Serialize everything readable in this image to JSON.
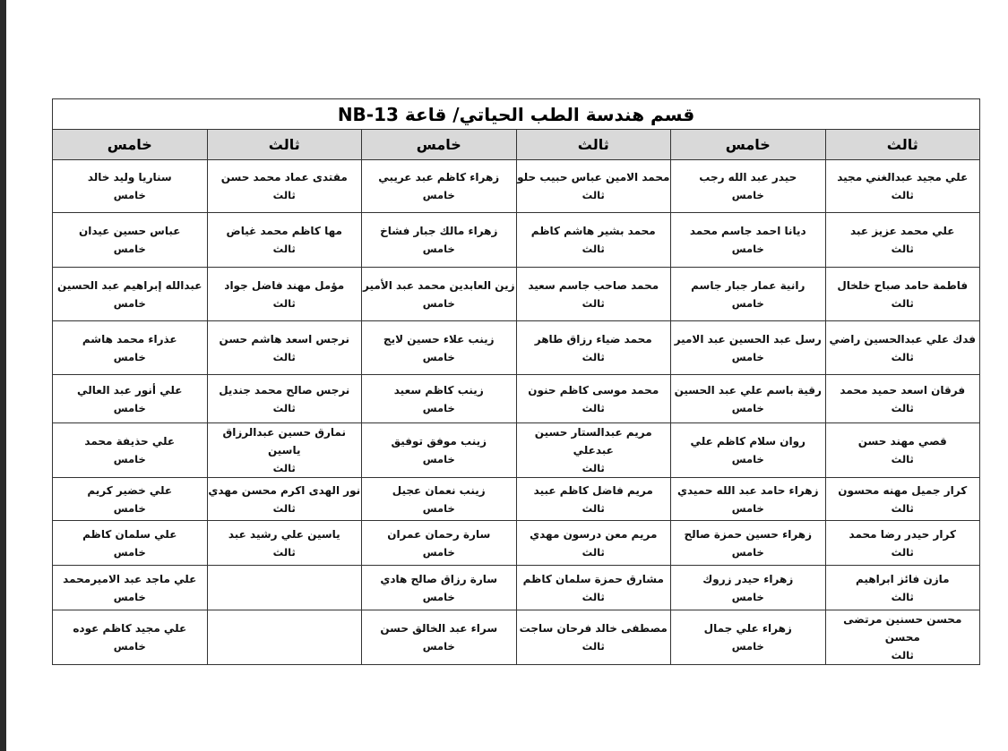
{
  "title": "قسم هندسة الطب الحياتي/ قاعة NB-13",
  "headers": [
    "ثالث",
    "خامس",
    "ثالث",
    "خامس",
    "ثالث",
    "خامس"
  ],
  "rows": [
    [
      [
        "علي مجيد عبدالغني مجيد",
        "ثالث"
      ],
      [
        "حيدر عبد الله رجب",
        "خامس"
      ],
      [
        "محمد الامين عباس حبيب حلو",
        "ثالث"
      ],
      [
        "زهراء كاظم عبد عريبي",
        "خامس"
      ],
      [
        "مقتدى عماد محمد حسن",
        "ثالث"
      ],
      [
        "سناريا وليد خالد",
        "خامس"
      ]
    ],
    [
      [
        "علي محمد عزيز عبد",
        "ثالث"
      ],
      [
        "ديانا احمد جاسم محمد",
        "خامس"
      ],
      [
        "محمد بشير هاشم كاظم",
        "ثالث"
      ],
      [
        "زهراء مالك جبار فشاخ",
        "خامس"
      ],
      [
        "مها كاظم محمد غياض",
        "ثالث"
      ],
      [
        "عباس حسين عيدان",
        "خامس"
      ]
    ],
    [
      [
        "فاطمة حامد صباح خلخال",
        "ثالث"
      ],
      [
        "رانية عمار جبار جاسم",
        "خامس"
      ],
      [
        "محمد صاحب جاسم سعيد",
        "ثالث"
      ],
      [
        "زين العابدين محمد عبد الأمير",
        "خامس"
      ],
      [
        "مؤمل مهند فاضل جواد",
        "ثالث"
      ],
      [
        "عبدالله إبراهيم عبد الحسين",
        "خامس"
      ]
    ],
    [
      [
        "فدك علي عبدالحسين راضي",
        "ثالث"
      ],
      [
        "رسل عبد الحسين عبد الامير",
        "خامس"
      ],
      [
        "محمد ضياء رزاق طاهر",
        "ثالث"
      ],
      [
        "زينب علاء حسين لايج",
        "خامس"
      ],
      [
        "نرجس اسعد هاشم حسن",
        "ثالث"
      ],
      [
        "عذراء محمد هاشم",
        "خامس"
      ]
    ],
    [
      [
        "فرقان اسعد حميد محمد",
        "ثالث"
      ],
      [
        "رقية باسم علي عبد الحسين",
        "خامس"
      ],
      [
        "محمد موسى كاظم حنون",
        "ثالث"
      ],
      [
        "زينب كاظم سعيد",
        "خامس"
      ],
      [
        "نرجس صالح محمد جنديل",
        "ثالث"
      ],
      [
        "علي أنور عبد العالي",
        "خامس"
      ]
    ],
    [
      [
        "قصي مهند حسن",
        "ثالث"
      ],
      [
        "روان سلام كاظم علي",
        "خامس"
      ],
      [
        "مريم عبدالستار حسين عبدعلي",
        "ثالث"
      ],
      [
        "زينب موفق توفيق",
        "خامس"
      ],
      [
        "نمارق حسين عبدالرزاق ياسين",
        "ثالث"
      ],
      [
        "علي حذيفة محمد",
        "خامس"
      ]
    ],
    [
      [
        "كرار جميل مهنه محسون",
        "ثالث"
      ],
      [
        "زهراء حامد عبد الله حميدي",
        "خامس"
      ],
      [
        "مريم فاضل كاظم عبيد",
        "ثالث"
      ],
      [
        "زينب نعمان عجيل",
        "خامس"
      ],
      [
        "نور الهدى اكرم محسن مهدي",
        "ثالث"
      ],
      [
        "علي خضير كريم",
        "خامس"
      ]
    ],
    [
      [
        "كرار حيدر رضا محمد",
        "ثالث"
      ],
      [
        "زهراء حسين حمزة صالح",
        "خامس"
      ],
      [
        "مريم معن درسون مهدي",
        "ثالث"
      ],
      [
        "سارة رحمان عمران",
        "خامس"
      ],
      [
        "ياسين علي رشيد عبد",
        "ثالث"
      ],
      [
        "علي سلمان كاظم",
        "خامس"
      ]
    ],
    [
      [
        "مازن فائز ابراهيم",
        "ثالث"
      ],
      [
        "زهراء حيدر زروك",
        "خامس"
      ],
      [
        "مشارق حمزة سلمان كاظم",
        "ثالث"
      ],
      [
        "سارة رزاق صالح هادي",
        "خامس"
      ],
      [
        "",
        ""
      ],
      [
        "علي ماجد عبد الاميرمحمد",
        "خامس"
      ]
    ],
    [
      [
        "محسن حسنين مرتضى محسن",
        "ثالث"
      ],
      [
        "زهراء علي جمال",
        "خامس"
      ],
      [
        "مصطفى خالد فرحان ساجت",
        "ثالث"
      ],
      [
        "سراء عبد الخالق حسن",
        "خامس"
      ],
      [
        "",
        ""
      ],
      [
        "علي مجيد كاظم عوده",
        "خامس"
      ]
    ]
  ]
}
